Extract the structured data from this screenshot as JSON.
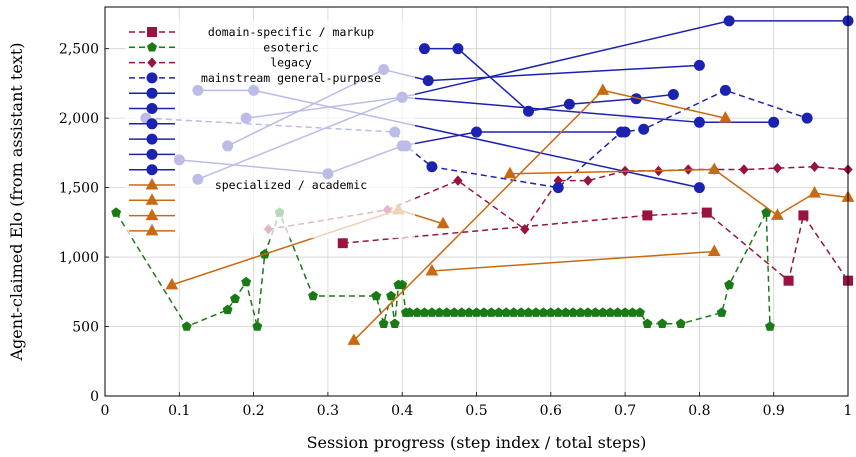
{
  "chart_data": {
    "type": "line",
    "xlabel": "Session progress (step index / total steps)",
    "ylabel": "Agent-claimed Elo (from assistant text)",
    "xlim": [
      0,
      1
    ],
    "ylim": [
      0,
      2800
    ],
    "xticks": [
      0,
      0.1,
      0.2,
      0.3,
      0.4,
      0.5,
      0.6,
      0.7,
      0.8,
      0.9,
      1
    ],
    "xtick_labels": [
      "0",
      "0.1",
      "0.2",
      "0.3",
      "0.4",
      "0.5",
      "0.6",
      "0.7",
      "0.8",
      "0.9",
      "1"
    ],
    "yticks": [
      0,
      500,
      1000,
      1500,
      2000,
      2500
    ],
    "ytick_labels": [
      "0",
      "500",
      "1,000",
      "1,500",
      "2,000",
      "2,500"
    ],
    "grid": true,
    "legend_position": "top-left",
    "legend": [
      {
        "label": "domain-specific / markup",
        "color": "#99133f",
        "marker": "square",
        "dash": true
      },
      {
        "label": "esoteric",
        "color": "#1a7a16",
        "marker": "pentagon",
        "dash": true
      },
      {
        "label": "legacy",
        "color": "#99133f",
        "marker": "diamond",
        "dash": true
      },
      {
        "label": "mainstream general-purpose",
        "color": "#1c22b0",
        "marker": "circle",
        "dash": true
      },
      {
        "label": "",
        "color": "#1c22b0",
        "marker": "circle",
        "dash": false
      },
      {
        "label": "",
        "color": "#1c22b0",
        "marker": "circle",
        "dash": false
      },
      {
        "label": "",
        "color": "#1c22b0",
        "marker": "circle",
        "dash": false
      },
      {
        "label": "",
        "color": "#1c22b0",
        "marker": "circle",
        "dash": false
      },
      {
        "label": "",
        "color": "#1c22b0",
        "marker": "circle",
        "dash": false
      },
      {
        "label": "",
        "color": "#1c22b0",
        "marker": "circle",
        "dash": false
      },
      {
        "label": "specialized / academic",
        "color": "#c96a12",
        "marker": "triangle",
        "dash": false
      },
      {
        "label": "",
        "color": "#c96a12",
        "marker": "triangle",
        "dash": false
      },
      {
        "label": "",
        "color": "#c96a12",
        "marker": "triangle",
        "dash": false
      },
      {
        "label": "",
        "color": "#c96a12",
        "marker": "triangle",
        "dash": false
      }
    ],
    "series": [
      {
        "group": "domain-specific / markup",
        "color": "#99133f",
        "marker": "square",
        "dash": true,
        "x": [
          0.32,
          0.73,
          0.81,
          0.92,
          0.94,
          1.0
        ],
        "y": [
          1100,
          1300,
          1320,
          830,
          1300,
          830
        ]
      },
      {
        "group": "legacy",
        "color": "#99133f",
        "marker": "diamond",
        "dash": true,
        "x": [
          0.22,
          0.38,
          0.475,
          0.565,
          0.61,
          0.65,
          0.7,
          0.745,
          0.785,
          0.82,
          0.86,
          0.905,
          0.955,
          1.0
        ],
        "y": [
          1200,
          1340,
          1550,
          1200,
          1550,
          1550,
          1620,
          1620,
          1630,
          1630,
          1630,
          1640,
          1650,
          1630
        ]
      },
      {
        "group": "esoteric",
        "color": "#1a7a16",
        "marker": "pentagon",
        "dash": true,
        "x": [
          0.015,
          0.11,
          0.165,
          0.175,
          0.19,
          0.205,
          0.215,
          0.235,
          0.28,
          0.365,
          0.375,
          0.385,
          0.39,
          0.395,
          0.4,
          0.405,
          0.41,
          0.42,
          0.43,
          0.44,
          0.45,
          0.46,
          0.47,
          0.48,
          0.49,
          0.5,
          0.51,
          0.52,
          0.53,
          0.54,
          0.55,
          0.56,
          0.57,
          0.58,
          0.59,
          0.6,
          0.61,
          0.62,
          0.63,
          0.64,
          0.65,
          0.66,
          0.67,
          0.68,
          0.69,
          0.7,
          0.71,
          0.72,
          0.73,
          0.75,
          0.775,
          0.83,
          0.84,
          0.89,
          0.895
        ],
        "y": [
          1320,
          500,
          620,
          700,
          820,
          500,
          1020,
          1320,
          720,
          720,
          520,
          720,
          520,
          800,
          800,
          600,
          600,
          600,
          600,
          600,
          600,
          600,
          600,
          600,
          600,
          600,
          600,
          600,
          600,
          600,
          600,
          600,
          600,
          600,
          600,
          600,
          600,
          600,
          600,
          600,
          600,
          600,
          600,
          600,
          600,
          600,
          600,
          600,
          520,
          520,
          520,
          600,
          800,
          1320,
          500
        ]
      },
      {
        "group": "mainstream general-purpose",
        "color": "#1c22b0",
        "marker": "circle",
        "dash": true,
        "x": [
          0.055,
          0.39,
          0.405,
          0.44,
          0.61,
          0.695,
          0.725,
          0.835,
          0.945
        ],
        "y": [
          2000,
          1900,
          1800,
          1650,
          1500,
          1900,
          1920,
          2200,
          2000
        ]
      },
      {
        "group": "mainstream general-purpose",
        "color": "#1c22b0",
        "marker": "circle",
        "dash": false,
        "x": [
          0.1,
          0.3,
          0.4,
          0.5,
          0.7
        ],
        "y": [
          1700,
          1600,
          1800,
          1900,
          1900
        ]
      },
      {
        "group": "mainstream general-purpose",
        "color": "#1c22b0",
        "marker": "circle",
        "dash": false,
        "x": [
          0.125,
          0.2,
          0.8
        ],
        "y": [
          2200,
          2200,
          1500
        ]
      },
      {
        "group": "mainstream general-purpose",
        "color": "#1c22b0",
        "marker": "circle",
        "dash": false,
        "x": [
          0.165,
          0.375,
          0.435,
          0.8
        ],
        "y": [
          1800,
          2350,
          2270,
          2380
        ]
      },
      {
        "group": "mainstream general-purpose",
        "color": "#1c22b0",
        "marker": "circle",
        "dash": false,
        "x": [
          0.19,
          0.4,
          0.8,
          0.9
        ],
        "y": [
          2000,
          2150,
          1970,
          1970
        ]
      },
      {
        "group": "mainstream general-purpose",
        "color": "#1c22b0",
        "marker": "circle",
        "dash": false,
        "x": [
          0.125,
          0.4,
          0.84,
          1.0
        ],
        "y": [
          1560,
          2150,
          2700,
          2700
        ]
      },
      {
        "group": "mainstream general-purpose",
        "color": "#1c22b0",
        "marker": "circle",
        "dash": false,
        "x": [
          0.43,
          0.475,
          0.57,
          0.625,
          0.715,
          0.765
        ],
        "y": [
          2500,
          2500,
          2050,
          2100,
          2140,
          2170
        ]
      },
      {
        "group": "specialized / academic",
        "color": "#c96a12",
        "marker": "triangle",
        "dash": false,
        "x": [
          0.09,
          0.395,
          0.455
        ],
        "y": [
          800,
          1340,
          1240
        ]
      },
      {
        "group": "specialized / academic",
        "color": "#c96a12",
        "marker": "triangle",
        "dash": false,
        "x": [
          0.335,
          0.67,
          0.835
        ],
        "y": [
          400,
          2200,
          2000
        ]
      },
      {
        "group": "specialized / academic",
        "color": "#c96a12",
        "marker": "triangle",
        "dash": false,
        "x": [
          0.44,
          0.82
        ],
        "y": [
          900,
          1040
        ]
      },
      {
        "group": "specialized / academic",
        "color": "#c96a12",
        "marker": "triangle",
        "dash": false,
        "x": [
          0.545,
          0.82,
          0.905,
          0.955,
          1.0
        ],
        "y": [
          1600,
          1630,
          1300,
          1460,
          1430
        ]
      }
    ]
  }
}
